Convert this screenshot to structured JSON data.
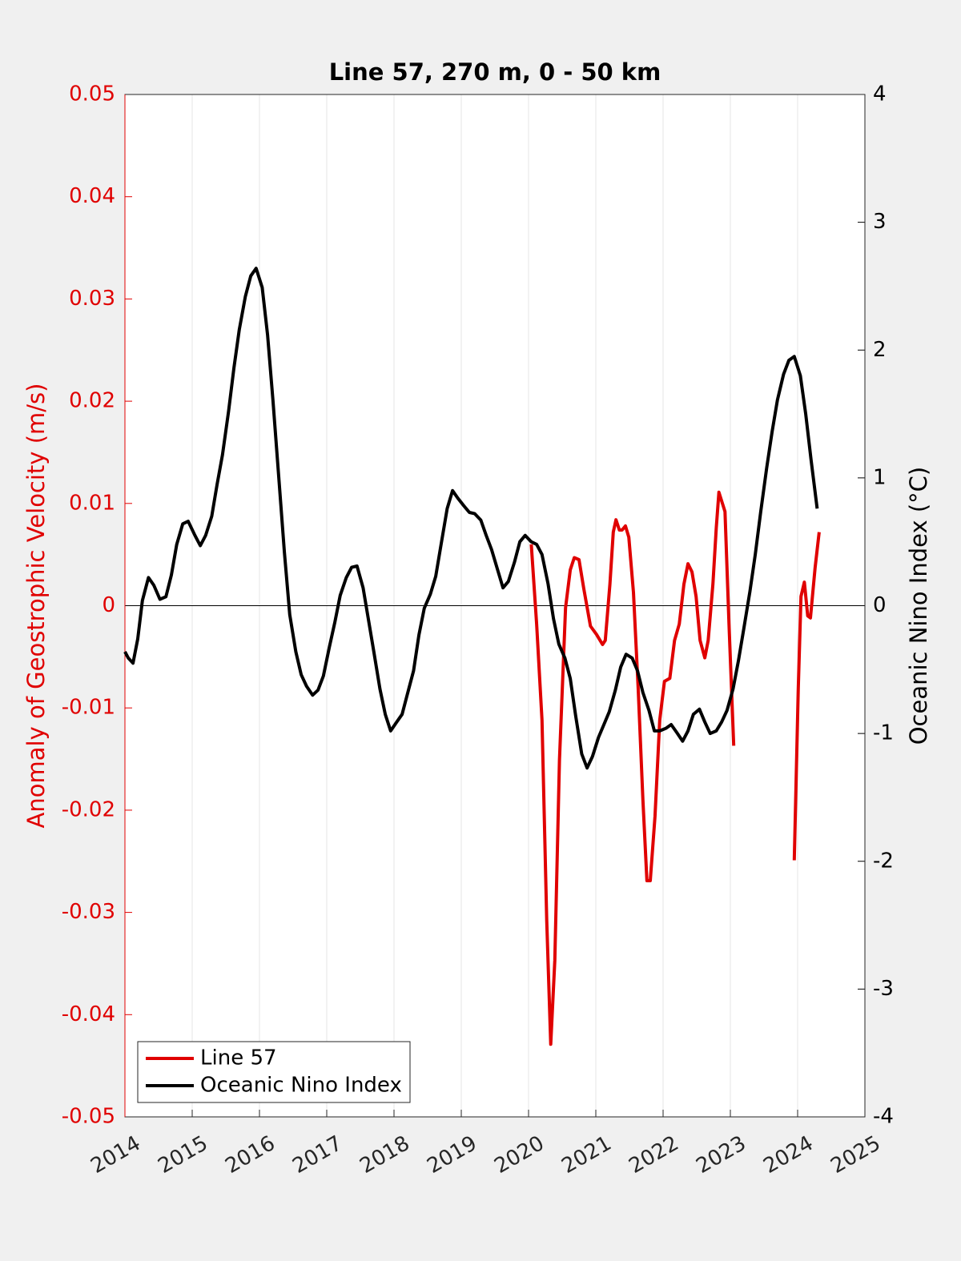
{
  "chart_data": {
    "type": "line",
    "title": "Line 57, 270 m, 0 - 50 km",
    "ylabel": "Anomaly of Geostrophic Velocity (m/s)",
    "y2label": "Oceanic Nino Index (°C)",
    "xlim": [
      2014,
      2025
    ],
    "xticks": [
      2014,
      2015,
      2016,
      2017,
      2018,
      2019,
      2020,
      2021,
      2022,
      2023,
      2024,
      2025
    ],
    "ylim": [
      -0.05,
      0.05
    ],
    "yticks": [
      -0.05,
      -0.04,
      -0.03,
      -0.02,
      -0.01,
      0,
      0.01,
      0.02,
      0.03,
      0.04,
      0.05
    ],
    "y2lim": [
      -4,
      4
    ],
    "y2ticks": [
      -4,
      -3,
      -2,
      -1,
      0,
      1,
      2,
      3,
      4
    ],
    "ycolor": "#e00000",
    "y2color": "#000000",
    "grid": "x",
    "legend": "lower left",
    "series": [
      {
        "name": "Line 57",
        "color": "#e00000",
        "axis": "y",
        "x": [
          2020.04,
          2020.12,
          2020.2,
          2020.27,
          2020.33,
          2020.39,
          2020.46,
          2020.55,
          2020.62,
          2020.68,
          2020.75,
          2020.82,
          2020.92,
          2021.01,
          2021.1,
          2021.14,
          2021.21,
          2021.26,
          2021.3,
          2021.35,
          2021.39,
          2021.44,
          2021.49,
          2021.56,
          2021.63,
          2021.7,
          2021.76,
          2021.81,
          2021.88,
          2021.95,
          2022.02,
          2022.1,
          2022.17,
          2022.24,
          2022.31,
          2022.37,
          2022.43,
          2022.49,
          2022.55,
          2022.62,
          2022.67,
          2022.74,
          2022.79,
          2022.83,
          2022.92,
          2022.98,
          2023.05,
          2023.5,
          2023.95,
          2024.01,
          2024.05,
          2024.1,
          2024.15,
          2024.19,
          2024.26,
          2024.32
        ],
        "values": [
          0.006,
          -0.0018,
          -0.0112,
          -0.0308,
          -0.0429,
          -0.0347,
          -0.0151,
          -0.0002,
          0.0035,
          0.0047,
          0.0045,
          0.0017,
          -0.002,
          -0.0028,
          -0.0038,
          -0.0034,
          0.0021,
          0.0072,
          0.0084,
          0.0074,
          0.0074,
          0.0078,
          0.0067,
          0.0013,
          -0.0081,
          -0.019,
          -0.0269,
          -0.0269,
          -0.0206,
          -0.0112,
          -0.0074,
          -0.0071,
          -0.0034,
          -0.0018,
          0.0021,
          0.0041,
          0.0033,
          0.0009,
          -0.0034,
          -0.0051,
          -0.0034,
          0.0021,
          0.0076,
          0.0111,
          0.0092,
          -0.0018,
          -0.0137,
          null,
          -0.0249,
          -0.0081,
          0.0009,
          0.0023,
          -0.001,
          -0.0012,
          0.0037,
          0.0072
        ]
      },
      {
        "name": "Oceanic Nino Index",
        "color": "#000000",
        "axis": "y2",
        "x": [
          2014.0,
          2014.05,
          2014.12,
          2014.19,
          2014.26,
          2014.35,
          2014.43,
          2014.52,
          2014.61,
          2014.69,
          2014.77,
          2014.86,
          2014.94,
          2015.04,
          2015.12,
          2015.2,
          2015.29,
          2015.37,
          2015.45,
          2015.54,
          2015.62,
          2015.7,
          2015.79,
          2015.87,
          2015.95,
          2016.04,
          2016.12,
          2016.2,
          2016.29,
          2016.37,
          2016.45,
          2016.54,
          2016.62,
          2016.7,
          2016.79,
          2016.87,
          2016.95,
          2017.04,
          2017.12,
          2017.2,
          2017.29,
          2017.37,
          2017.45,
          2017.54,
          2017.62,
          2017.7,
          2017.79,
          2017.87,
          2017.95,
          2018.04,
          2018.12,
          2018.2,
          2018.29,
          2018.37,
          2018.45,
          2018.54,
          2018.62,
          2018.7,
          2018.79,
          2018.87,
          2018.95,
          2019.04,
          2019.12,
          2019.2,
          2019.29,
          2019.37,
          2019.45,
          2019.54,
          2019.62,
          2019.7,
          2019.79,
          2019.87,
          2019.95,
          2020.04,
          2020.12,
          2020.2,
          2020.29,
          2020.37,
          2020.45,
          2020.54,
          2020.62,
          2020.7,
          2020.79,
          2020.87,
          2020.95,
          2021.04,
          2021.12,
          2021.2,
          2021.29,
          2021.37,
          2021.45,
          2021.54,
          2021.62,
          2021.7,
          2021.79,
          2021.87,
          2021.95,
          2022.04,
          2022.12,
          2022.2,
          2022.29,
          2022.37,
          2022.45,
          2022.54,
          2022.62,
          2022.7,
          2022.79,
          2022.87,
          2022.95,
          2023.04,
          2023.12,
          2023.2,
          2023.29,
          2023.37,
          2023.45,
          2023.54,
          2023.62,
          2023.7,
          2023.79,
          2023.87,
          2023.95,
          2024.04,
          2024.12,
          2024.2,
          2024.29
        ],
        "values": [
          -0.36,
          -0.41,
          -0.45,
          -0.26,
          0.04,
          0.22,
          0.16,
          0.05,
          0.07,
          0.24,
          0.48,
          0.64,
          0.66,
          0.55,
          0.47,
          0.55,
          0.7,
          0.95,
          1.18,
          1.52,
          1.86,
          2.16,
          2.42,
          2.58,
          2.64,
          2.49,
          2.12,
          1.61,
          0.98,
          0.42,
          -0.07,
          -0.36,
          -0.54,
          -0.63,
          -0.7,
          -0.66,
          -0.55,
          -0.32,
          -0.13,
          0.08,
          0.22,
          0.3,
          0.31,
          0.14,
          -0.11,
          -0.36,
          -0.65,
          -0.85,
          -0.98,
          -0.91,
          -0.85,
          -0.69,
          -0.51,
          -0.23,
          -0.02,
          0.09,
          0.23,
          0.48,
          0.76,
          0.9,
          0.84,
          0.78,
          0.73,
          0.72,
          0.67,
          0.55,
          0.44,
          0.28,
          0.14,
          0.19,
          0.34,
          0.5,
          0.55,
          0.5,
          0.48,
          0.4,
          0.17,
          -0.1,
          -0.3,
          -0.41,
          -0.57,
          -0.86,
          -1.16,
          -1.27,
          -1.18,
          -1.03,
          -0.93,
          -0.83,
          -0.66,
          -0.48,
          -0.38,
          -0.41,
          -0.51,
          -0.68,
          -0.82,
          -0.98,
          -0.98,
          -0.96,
          -0.93,
          -0.99,
          -1.06,
          -0.98,
          -0.85,
          -0.81,
          -0.91,
          -1.0,
          -0.98,
          -0.91,
          -0.82,
          -0.65,
          -0.43,
          -0.18,
          0.11,
          0.4,
          0.73,
          1.08,
          1.36,
          1.61,
          1.81,
          1.92,
          1.95,
          1.8,
          1.5,
          1.14,
          0.76
        ]
      }
    ]
  }
}
